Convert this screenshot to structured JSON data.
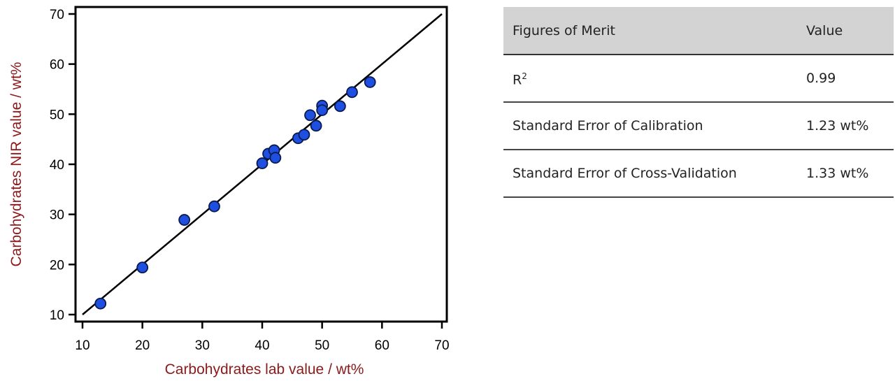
{
  "chart_data": {
    "type": "scatter",
    "xlabel": "Carbohydrates lab value / wt%",
    "ylabel": "Carbohydrates NIR value / wt%",
    "xlim": [
      10,
      70
    ],
    "ylim": [
      10,
      70
    ],
    "xticks": [
      10,
      20,
      30,
      40,
      50,
      60,
      70
    ],
    "yticks": [
      10,
      20,
      30,
      40,
      50,
      60,
      70
    ],
    "grid": false,
    "fit_line": {
      "from": [
        10,
        10
      ],
      "to": [
        70,
        70
      ]
    },
    "marker_color": "#1f4fe0",
    "points": [
      [
        13,
        12.2
      ],
      [
        20,
        19.4
      ],
      [
        27,
        28.9
      ],
      [
        32,
        31.6
      ],
      [
        40,
        40.2
      ],
      [
        41,
        42.1
      ],
      [
        42,
        42.8
      ],
      [
        42.2,
        41.3
      ],
      [
        46,
        45.2
      ],
      [
        47,
        45.9
      ],
      [
        48,
        49.8
      ],
      [
        49,
        47.7
      ],
      [
        50,
        51.7
      ],
      [
        50,
        50.8
      ],
      [
        53,
        51.6
      ],
      [
        55,
        54.4
      ],
      [
        58,
        56.4
      ]
    ]
  },
  "table": {
    "headers": [
      "Figures of Merit",
      "Value"
    ],
    "rows": [
      {
        "label": "R",
        "sup": "2",
        "value": "0.99"
      },
      {
        "label": "Standard Error of Calibration",
        "value": "1.23 wt%"
      },
      {
        "label": "Standard Error of Cross-Validation",
        "value": "1.33 wt%"
      }
    ]
  }
}
